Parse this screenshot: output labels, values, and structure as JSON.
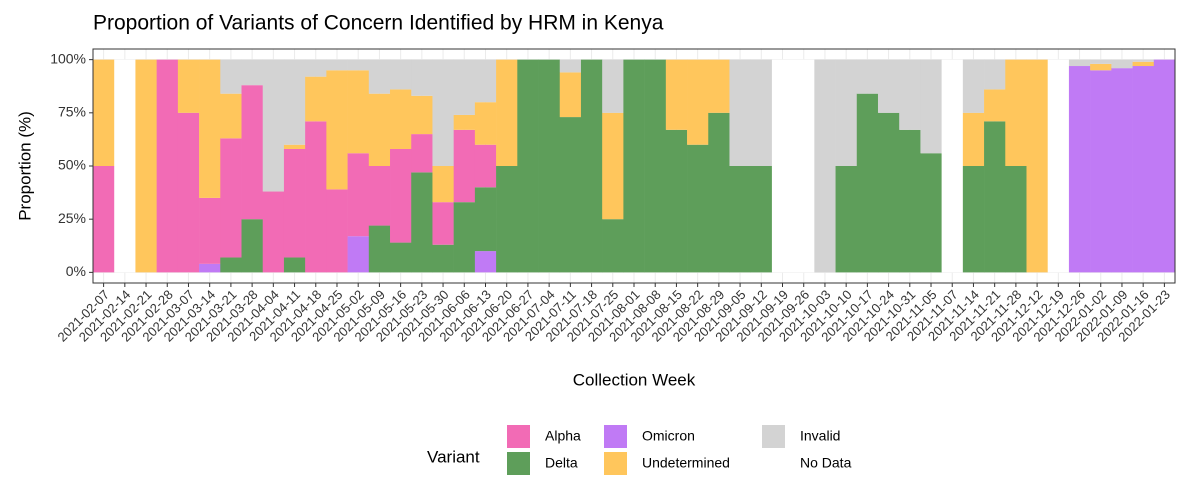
{
  "chart_data": {
    "type": "stacked_bar",
    "title": "Proportion of Variants of Concern Identified by HRM in Kenya",
    "x_label": "Collection Week",
    "y_label": "Proportion (%)",
    "legend_title": "Variant",
    "categories": [
      "2021-02-07",
      "2021-02-14",
      "2021-02-21",
      "2021-02-28",
      "2021-03-07",
      "2021-03-14",
      "2021-03-21",
      "2021-03-28",
      "2021-04-04",
      "2021-04-11",
      "2021-04-18",
      "2021-04-25",
      "2021-05-02",
      "2021-05-09",
      "2021-05-16",
      "2021-05-23",
      "2021-05-30",
      "2021-06-06",
      "2021-06-13",
      "2021-06-20",
      "2021-06-27",
      "2021-07-04",
      "2021-07-11",
      "2021-07-18",
      "2021-07-25",
      "2021-08-01",
      "2021-08-08",
      "2021-08-15",
      "2021-08-22",
      "2021-08-29",
      "2021-09-05",
      "2021-09-12",
      "2021-09-19",
      "2021-09-26",
      "2021-10-03",
      "2021-10-10",
      "2021-10-17",
      "2021-10-24",
      "2021-10-31",
      "2021-11-05",
      "2021-11-07",
      "2021-11-14",
      "2021-11-21",
      "2021-11-28",
      "2021-12-12",
      "2021-12-19",
      "2021-12-26",
      "2022-01-02",
      "2022-01-09",
      "2022-01-16",
      "2022-01-23"
    ],
    "series": [
      {
        "name": "Alpha",
        "color": "#f26bb5",
        "values": [
          50,
          0,
          0,
          100,
          75,
          31,
          56,
          63,
          38,
          51,
          71,
          39,
          39,
          28,
          44,
          18,
          20,
          34,
          20,
          0,
          0,
          0,
          0,
          0,
          0,
          0,
          0,
          0,
          0,
          0,
          0,
          0,
          0,
          0,
          0,
          0,
          0,
          0,
          0,
          0,
          0,
          0,
          0,
          0,
          0,
          0,
          0,
          0,
          0,
          0,
          0
        ]
      },
      {
        "name": "Delta",
        "color": "#5e9e5a",
        "values": [
          0,
          0,
          0,
          0,
          0,
          0,
          7,
          25,
          0,
          7,
          0,
          0,
          0,
          22,
          14,
          47,
          13,
          33,
          30,
          50,
          100,
          100,
          73,
          100,
          25,
          100,
          100,
          67,
          60,
          75,
          50,
          50,
          0,
          0,
          0,
          50,
          84,
          75,
          67,
          56,
          0,
          50,
          71,
          50,
          0,
          0,
          0,
          0,
          0,
          0,
          0
        ]
      },
      {
        "name": "Omicron",
        "color": "#c07af5",
        "values": [
          0,
          0,
          0,
          0,
          0,
          4,
          0,
          0,
          0,
          0,
          0,
          0,
          17,
          0,
          0,
          0,
          0,
          0,
          10,
          0,
          0,
          0,
          0,
          0,
          0,
          0,
          0,
          0,
          0,
          0,
          0,
          0,
          0,
          0,
          0,
          0,
          0,
          0,
          0,
          0,
          0,
          0,
          0,
          0,
          0,
          0,
          97,
          95,
          96,
          97,
          100
        ]
      },
      {
        "name": "Undetermined",
        "color": "#ffc65c",
        "values": [
          50,
          0,
          100,
          0,
          25,
          65,
          21,
          0,
          0,
          2,
          21,
          56,
          39,
          34,
          28,
          18,
          17,
          7,
          20,
          50,
          0,
          0,
          21,
          0,
          50,
          0,
          0,
          33,
          40,
          25,
          0,
          0,
          0,
          0,
          0,
          0,
          0,
          0,
          0,
          0,
          0,
          25,
          15,
          50,
          100,
          0,
          0,
          3,
          0,
          2,
          0
        ]
      },
      {
        "name": "Invalid",
        "color": "#d3d3d3",
        "values": [
          0,
          0,
          0,
          0,
          0,
          0,
          16,
          12,
          62,
          40,
          8,
          5,
          5,
          16,
          14,
          17,
          50,
          26,
          20,
          0,
          0,
          0,
          6,
          0,
          25,
          0,
          0,
          0,
          0,
          0,
          50,
          50,
          0,
          0,
          100,
          50,
          16,
          25,
          33,
          44,
          0,
          25,
          14,
          0,
          0,
          0,
          3,
          2,
          4,
          1,
          0
        ]
      },
      {
        "name": "No Data",
        "color": "#ffffff",
        "values": [
          0,
          100,
          0,
          0,
          0,
          0,
          0,
          0,
          0,
          0,
          0,
          0,
          0,
          0,
          0,
          0,
          0,
          0,
          0,
          0,
          0,
          0,
          0,
          0,
          0,
          0,
          0,
          0,
          0,
          0,
          0,
          0,
          100,
          100,
          0,
          0,
          0,
          0,
          0,
          0,
          100,
          0,
          0,
          0,
          0,
          100,
          0,
          0,
          0,
          0,
          0
        ]
      }
    ],
    "stack_order": [
      "Omicron",
      "Delta",
      "Alpha",
      "Undetermined",
      "Invalid",
      "No Data"
    ],
    "ylim": [
      -5,
      105
    ],
    "yticks": [
      {
        "value": 0,
        "label": "0%"
      },
      {
        "value": 25,
        "label": "25%"
      },
      {
        "value": 50,
        "label": "50%"
      },
      {
        "value": 75,
        "label": "75%"
      },
      {
        "value": 100,
        "label": "100%"
      }
    ],
    "grid": true
  }
}
